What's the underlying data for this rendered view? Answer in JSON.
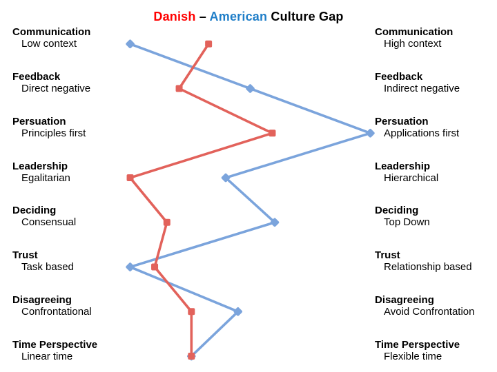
{
  "title": {
    "danish": "Danish",
    "separator": " – ",
    "american": "American",
    "suffix": " Culture Gap"
  },
  "colors": {
    "danish_title": "#ff0000",
    "american_title": "#1f7ec8",
    "danish_line": "#e2625b",
    "american_line": "#7ba4dc",
    "text": "#000000",
    "background": "#ffffff"
  },
  "chart_data": {
    "type": "line",
    "orientation": "vertical-category-slope",
    "title": "Danish – American Culture Gap",
    "xlim": [
      0,
      100
    ],
    "grid": false,
    "legend_position": "in-title",
    "categories": [
      "Communication",
      "Feedback",
      "Persuation",
      "Leadership",
      "Deciding",
      "Trust",
      "Disagreeing",
      "Time Perspective"
    ],
    "left_pole_labels": [
      "Low context",
      "Direct negative",
      "Principles first",
      "Egalitarian",
      "Consensual",
      "Task based",
      "Confrontational",
      "Linear time"
    ],
    "right_pole_labels": [
      "High context",
      "Indirect negative",
      "Applications first",
      "Hierarchical",
      "Top Down",
      "Relationship based",
      "Avoid Confrontation",
      "Flexible time"
    ],
    "series": [
      {
        "name": "Danish",
        "color": "#e2625b",
        "marker": "square",
        "values": [
          33,
          21,
          59,
          1,
          16,
          11,
          26,
          26
        ]
      },
      {
        "name": "American",
        "color": "#7ba4dc",
        "marker": "diamond",
        "values": [
          1,
          50,
          99,
          40,
          60,
          1,
          45,
          26
        ]
      }
    ]
  }
}
